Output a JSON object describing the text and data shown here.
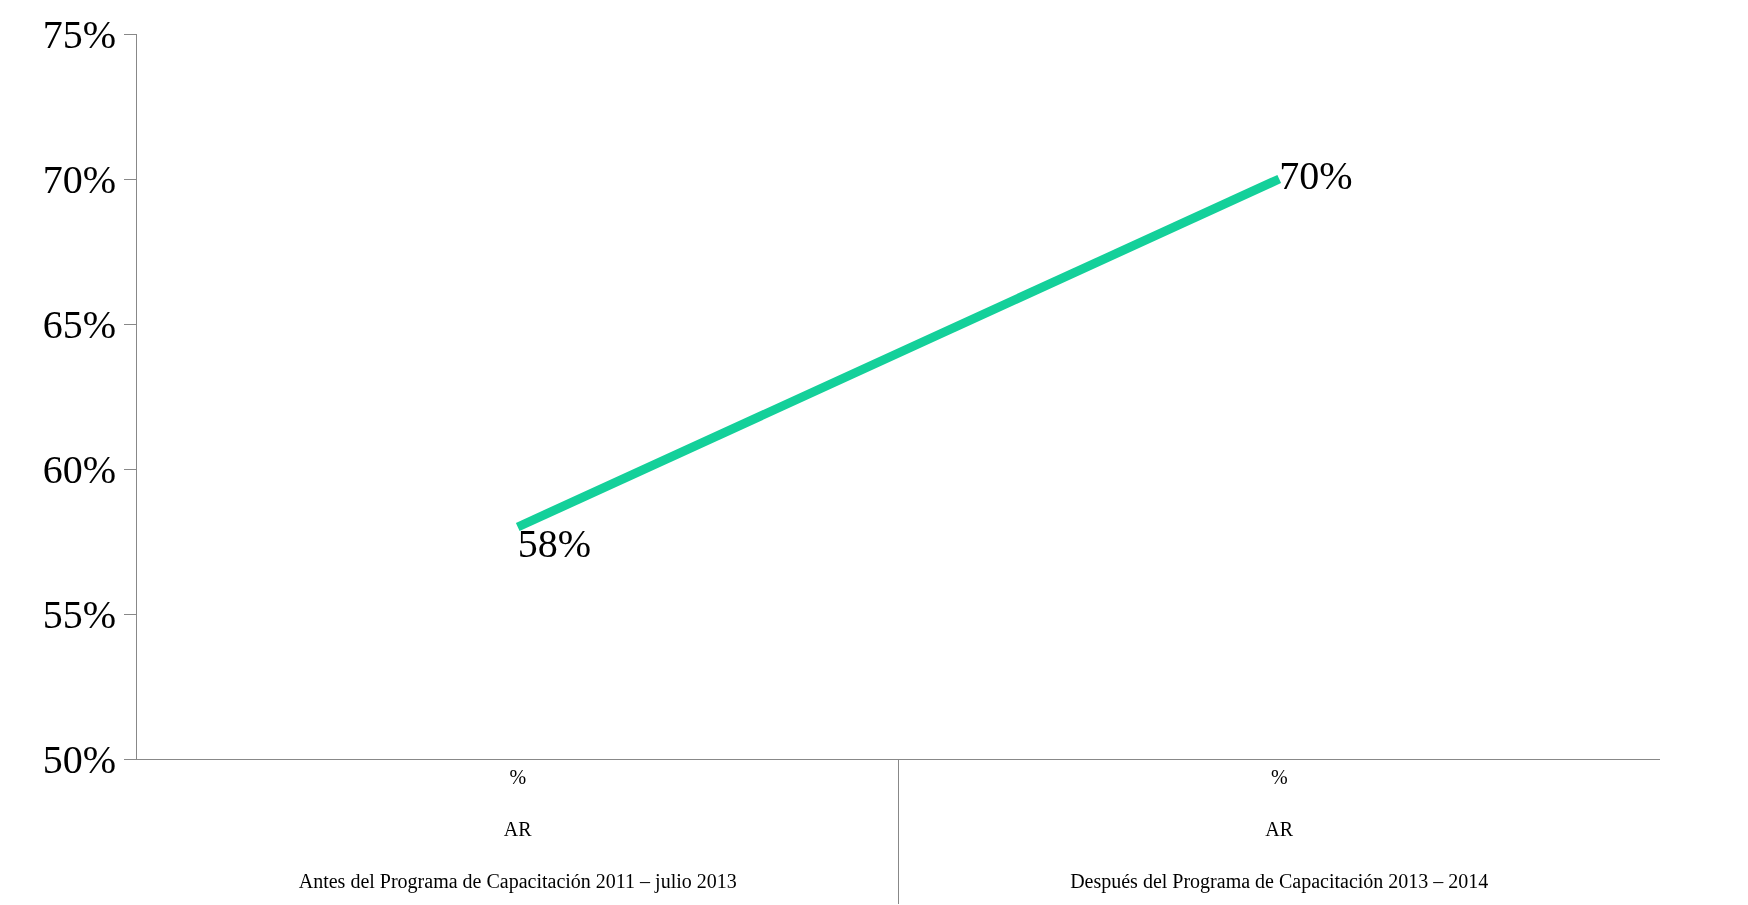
{
  "chart_data": {
    "type": "line",
    "categories": [
      "%\nAR\nAntes del Programa de Capacitación 2011 – julio 2013",
      "%\nAR\nDespués del Programa de Capacitación 2013 – 2014"
    ],
    "series": [
      {
        "color": "#14d09a",
        "values": [
          58,
          70
        ],
        "value_labels": [
          "58%",
          "70%"
        ]
      }
    ],
    "ylim": [
      50,
      75
    ],
    "yticks": [
      {
        "value": 50,
        "label": "50%"
      },
      {
        "value": 55,
        "label": "55%"
      },
      {
        "value": 60,
        "label": "60%"
      },
      {
        "value": 65,
        "label": "65%"
      },
      {
        "value": 70,
        "label": "70%"
      },
      {
        "value": 75,
        "label": "75%"
      }
    ],
    "legend": false,
    "marker": "none",
    "line_style": "solid"
  }
}
